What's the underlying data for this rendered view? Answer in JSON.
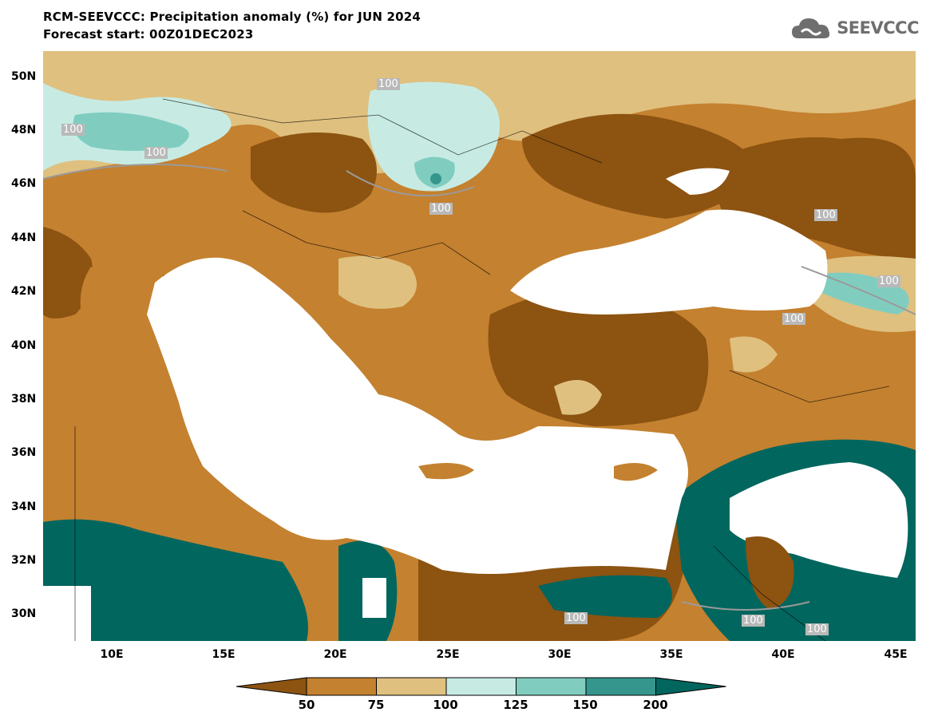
{
  "title": {
    "line1": "RCM-SEEVCCC: Precipitation anomaly (%) for JUN 2024",
    "line2": "Forecast start: 00Z01DEC2023"
  },
  "logo": {
    "text": "SEEVCCC",
    "icon": "cloud-logo-icon"
  },
  "map": {
    "lat_ticks": [
      "50N",
      "48N",
      "46N",
      "44N",
      "42N",
      "40N",
      "38N",
      "36N",
      "34N",
      "32N",
      "30N"
    ],
    "lon_ticks": [
      "10E",
      "15E",
      "20E",
      "25E",
      "30E",
      "35E",
      "40E",
      "45E"
    ],
    "contour_labels": [
      "100",
      "100",
      "100",
      "100",
      "100",
      "100",
      "100",
      "100",
      "100",
      "100"
    ]
  },
  "legend": {
    "labels": [
      "50",
      "75",
      "100",
      "125",
      "150",
      "200"
    ],
    "colors": [
      "#8c5311",
      "#c4812f",
      "#dfc07f",
      "#c7ebe3",
      "#80cdc0",
      "#34968d",
      "#01665e"
    ]
  }
}
